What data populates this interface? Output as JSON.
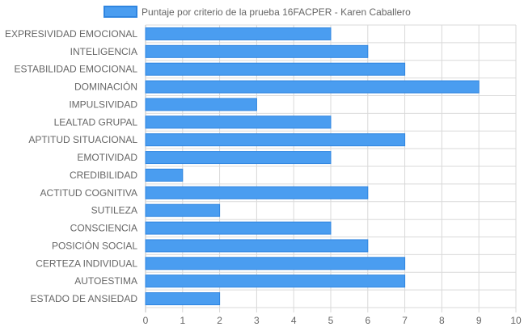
{
  "chart_data": {
    "type": "bar",
    "orientation": "horizontal",
    "categories": [
      "EXPRESIVIDAD EMOCIONAL",
      "INTELIGENCIA",
      "ESTABILIDAD EMOCIONAL",
      "DOMINACIÓN",
      "IMPULSIVIDAD",
      "LEALTAD GRUPAL",
      "APTITUD SITUACIONAL",
      "EMOTIVIDAD",
      "CREDIBILIDAD",
      "ACTITUD COGNITIVA",
      "SUTILEZA",
      "CONSCIENCIA",
      "POSICIÓN SOCIAL",
      "CERTEZA INDIVIDUAL",
      "AUTOESTIMA",
      "ESTADO DE ANSIEDAD"
    ],
    "series": [
      {
        "name": "Puntaje por criterio de la prueba 16FACPER - Karen Caballero",
        "values": [
          5,
          6,
          7,
          9,
          3,
          5,
          7,
          5,
          1,
          6,
          2,
          5,
          6,
          7,
          7,
          2
        ]
      }
    ],
    "xlim": [
      0,
      10
    ],
    "xticks": [
      "0",
      "1",
      "2",
      "3",
      "4",
      "5",
      "6",
      "7",
      "8",
      "9",
      "10"
    ],
    "grid": true,
    "legend_position": "top",
    "colors": {
      "bar_fill": "#4a9df0",
      "bar_stroke": "#2f85e0",
      "grid": "#d9d9d9",
      "text": "#666666"
    }
  }
}
